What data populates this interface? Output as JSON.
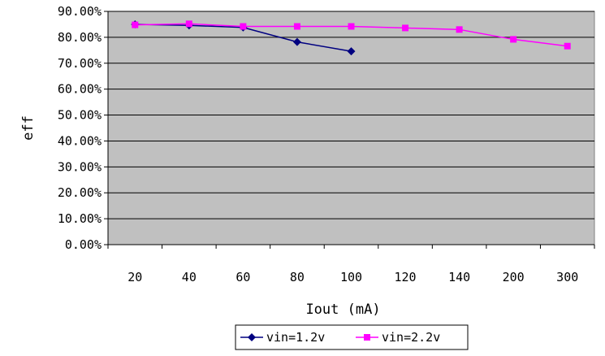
{
  "chart_data": {
    "type": "line",
    "title": "",
    "xlabel": "Iout (mA)",
    "ylabel": "eff",
    "categories": [
      "20",
      "40",
      "60",
      "80",
      "100",
      "120",
      "140",
      "200",
      "300"
    ],
    "y_ticks": [
      "0.00%",
      "10.00%",
      "20.00%",
      "30.00%",
      "40.00%",
      "50.00%",
      "60.00%",
      "70.00%",
      "80.00%",
      "90.00%"
    ],
    "ylim": [
      0,
      90
    ],
    "grid": true,
    "legend": "bottom",
    "plot_background": "#c0c0c0",
    "series": [
      {
        "name": "vin=1.2v",
        "color": "#000080",
        "marker": "diamond",
        "values": [
          85.0,
          84.6,
          83.8,
          78.2,
          74.6,
          null,
          null,
          null,
          null
        ]
      },
      {
        "name": "vin=2.2v",
        "color": "#ff00ff",
        "marker": "square",
        "values": [
          84.8,
          85.2,
          84.2,
          84.2,
          84.2,
          83.6,
          83.0,
          79.2,
          76.6
        ]
      }
    ]
  }
}
